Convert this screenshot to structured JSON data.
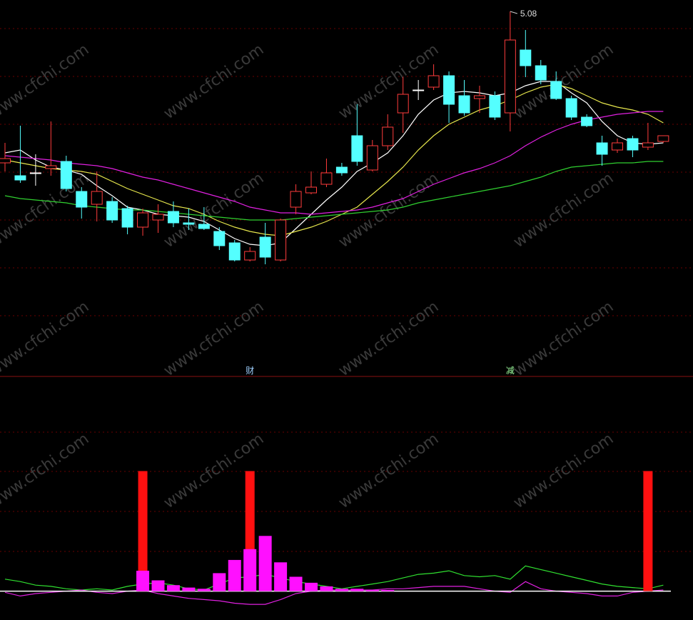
{
  "watermark": "www.cfchi.com",
  "chart_data": [
    {
      "type": "candlestick",
      "up_color": "#ff3c3c",
      "down_color": "#54ffff",
      "flat_color": "#ffffff",
      "ylim": [
        2.56,
        5.16
      ],
      "open": [
        4.02,
        3.93,
        3.95,
        3.98,
        4.03,
        3.82,
        3.73,
        3.75,
        3.7,
        3.57,
        3.62,
        3.68,
        3.6,
        3.59,
        3.54,
        3.46,
        3.34,
        3.5,
        3.34,
        3.71,
        3.81,
        3.87,
        3.99,
        4.21,
        3.97,
        4.14,
        4.37,
        4.53,
        4.55,
        4.63,
        4.49,
        4.47,
        4.49,
        4.37,
        4.81,
        4.7,
        4.59,
        4.47,
        4.34,
        4.16,
        4.11,
        4.19,
        4.13,
        4.17
      ],
      "close": [
        4.05,
        3.9,
        3.95,
        4.0,
        3.84,
        3.71,
        3.82,
        3.62,
        3.57,
        3.67,
        3.66,
        3.6,
        3.59,
        3.56,
        3.44,
        3.34,
        3.4,
        3.36,
        3.62,
        3.82,
        3.85,
        3.95,
        3.95,
        4.03,
        4.14,
        4.27,
        4.5,
        4.53,
        4.63,
        4.43,
        4.37,
        4.49,
        4.34,
        4.88,
        4.7,
        4.6,
        4.47,
        4.34,
        4.28,
        4.08,
        4.16,
        4.11,
        4.16,
        4.21
      ],
      "high": [
        4.16,
        4.28,
        4.08,
        4.31,
        4.07,
        3.85,
        3.96,
        3.78,
        3.72,
        3.7,
        3.73,
        3.75,
        3.7,
        3.71,
        3.57,
        3.48,
        3.43,
        3.6,
        3.63,
        3.87,
        3.96,
        4.05,
        4.02,
        4.43,
        4.18,
        4.36,
        4.62,
        4.6,
        4.71,
        4.66,
        4.6,
        4.56,
        4.52,
        5.08,
        4.95,
        4.74,
        4.66,
        4.49,
        4.36,
        4.21,
        4.19,
        4.21,
        4.3,
        4.21
      ],
      "low": [
        3.96,
        3.88,
        3.86,
        3.93,
        3.82,
        3.63,
        3.61,
        3.6,
        3.52,
        3.51,
        3.53,
        3.57,
        3.55,
        3.55,
        3.41,
        3.33,
        3.33,
        3.31,
        3.33,
        3.66,
        3.8,
        3.85,
        3.93,
        4.0,
        3.96,
        4.11,
        4.23,
        4.46,
        4.53,
        4.3,
        4.35,
        4.37,
        4.32,
        4.24,
        4.62,
        4.57,
        4.46,
        4.32,
        4.27,
        4.0,
        4.09,
        4.06,
        4.11,
        4.16
      ],
      "high_value_labels": [
        null,
        null,
        null,
        null,
        null,
        null,
        null,
        null,
        null,
        null,
        null,
        null,
        null,
        null,
        null,
        null,
        null,
        null,
        null,
        null,
        null,
        null,
        null,
        null,
        null,
        null,
        null,
        null,
        null,
        null,
        null,
        null,
        null,
        "5.08",
        null,
        null,
        null,
        null,
        null,
        null,
        null,
        null,
        null,
        null
      ],
      "signals": [
        null,
        null,
        null,
        null,
        null,
        null,
        null,
        null,
        null,
        null,
        null,
        null,
        null,
        null,
        null,
        null,
        "财",
        null,
        null,
        null,
        null,
        null,
        null,
        null,
        null,
        null,
        null,
        null,
        null,
        null,
        null,
        null,
        null,
        "减",
        null,
        null,
        null,
        null,
        null,
        null,
        null,
        null,
        null,
        null
      ],
      "lines": [
        {
          "color": "#ffffff",
          "values": [
            4.09,
            4.11,
            4.04,
            3.99,
            3.97,
            3.94,
            3.86,
            3.79,
            3.71,
            3.69,
            3.66,
            3.65,
            3.64,
            3.61,
            3.55,
            3.49,
            3.45,
            3.44,
            3.46,
            3.56,
            3.66,
            3.76,
            3.85,
            3.96,
            4.02,
            4.09,
            4.21,
            4.36,
            4.46,
            4.51,
            4.52,
            4.51,
            4.49,
            4.51,
            4.56,
            4.59,
            4.59,
            4.51,
            4.44,
            4.31,
            4.21,
            4.16,
            4.15,
            4.16
          ]
        },
        {
          "color": "#e6e64c",
          "values": [
            4.04,
            4.02,
            4.0,
            3.98,
            3.97,
            3.96,
            3.94,
            3.89,
            3.84,
            3.8,
            3.76,
            3.72,
            3.7,
            3.66,
            3.61,
            3.57,
            3.54,
            3.52,
            3.51,
            3.54,
            3.57,
            3.61,
            3.66,
            3.71,
            3.8,
            3.89,
            3.99,
            4.11,
            4.21,
            4.29,
            4.34,
            4.39,
            4.42,
            4.46,
            4.51,
            4.55,
            4.57,
            4.54,
            4.49,
            4.44,
            4.41,
            4.39,
            4.36,
            4.3
          ]
        },
        {
          "color": "#e020e0",
          "values": [
            4.07,
            4.06,
            4.05,
            4.04,
            4.02,
            4.01,
            4.0,
            3.98,
            3.95,
            3.92,
            3.9,
            3.87,
            3.84,
            3.81,
            3.78,
            3.75,
            3.71,
            3.69,
            3.67,
            3.67,
            3.66,
            3.67,
            3.68,
            3.69,
            3.71,
            3.74,
            3.77,
            3.82,
            3.87,
            3.91,
            3.95,
            3.98,
            4.02,
            4.07,
            4.14,
            4.2,
            4.25,
            4.29,
            4.32,
            4.34,
            4.36,
            4.37,
            4.38,
            4.38
          ]
        },
        {
          "color": "#30d030",
          "values": [
            3.79,
            3.77,
            3.76,
            3.75,
            3.74,
            3.72,
            3.71,
            3.7,
            3.69,
            3.69,
            3.68,
            3.67,
            3.66,
            3.65,
            3.64,
            3.63,
            3.62,
            3.62,
            3.62,
            3.63,
            3.64,
            3.65,
            3.66,
            3.67,
            3.68,
            3.69,
            3.71,
            3.74,
            3.76,
            3.78,
            3.8,
            3.82,
            3.84,
            3.86,
            3.89,
            3.92,
            3.96,
            3.99,
            4.0,
            4.01,
            4.02,
            4.02,
            4.03,
            4.03
          ]
        }
      ]
    },
    {
      "type": "bar",
      "ylim": [
        -24,
        177
      ],
      "series": [
        {
          "color": "#ff1010",
          "values": [
            null,
            null,
            null,
            null,
            null,
            null,
            null,
            null,
            null,
            100,
            null,
            null,
            null,
            null,
            null,
            null,
            100,
            null,
            null,
            null,
            null,
            null,
            null,
            null,
            null,
            null,
            null,
            null,
            null,
            null,
            null,
            null,
            null,
            null,
            null,
            null,
            null,
            null,
            null,
            null,
            null,
            null,
            100,
            null
          ]
        },
        {
          "color": "#ff10ff",
          "values": [
            null,
            null,
            null,
            null,
            null,
            null,
            null,
            null,
            null,
            17,
            9,
            5,
            3,
            2,
            15,
            26,
            35,
            46,
            24,
            12,
            7,
            4,
            2,
            2,
            1,
            1,
            null,
            null,
            null,
            null,
            null,
            null,
            null,
            null,
            null,
            null,
            null,
            null,
            null,
            null,
            null,
            null,
            null,
            null
          ]
        }
      ],
      "lines": [
        {
          "color": "#30e030",
          "values": [
            10,
            8,
            5,
            4,
            2,
            1,
            2,
            1,
            4,
            6,
            7,
            5,
            2,
            1,
            6,
            11,
            12,
            14,
            11,
            8,
            6,
            4,
            2,
            4,
            6,
            8,
            11,
            14,
            15,
            17,
            13,
            12,
            13,
            10,
            21,
            18,
            15,
            12,
            9,
            6,
            4,
            3,
            2,
            5
          ]
        },
        {
          "color": "#e020e0",
          "values": [
            -1,
            -4,
            -2,
            -1,
            0,
            1,
            -1,
            -2,
            0,
            1,
            -2,
            -4,
            -6,
            -7,
            -8,
            -10,
            -11,
            -11,
            -7,
            -2,
            0,
            1,
            1,
            1,
            1,
            2,
            2,
            3,
            4,
            4,
            4,
            2,
            0,
            -1,
            8,
            2,
            0,
            -1,
            -2,
            -4,
            -4,
            -1,
            0,
            1
          ]
        }
      ]
    }
  ]
}
